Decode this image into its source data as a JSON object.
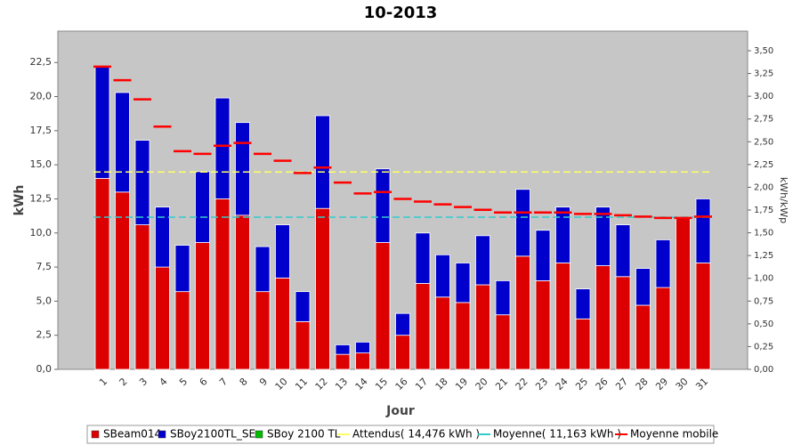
{
  "chart_data": {
    "type": "bar",
    "stacked": true,
    "title": "10-2013",
    "x_label": "Jour",
    "y_label": "kWh",
    "y2_label": "kWh/kWp",
    "categories": [
      "1",
      "2",
      "3",
      "4",
      "5",
      "6",
      "7",
      "8",
      "9",
      "10",
      "11",
      "12",
      "13",
      "14",
      "15",
      "16",
      "17",
      "18",
      "19",
      "20",
      "21",
      "22",
      "23",
      "24",
      "25",
      "26",
      "27",
      "28",
      "29",
      "30",
      "31"
    ],
    "series": [
      {
        "name": "SBeam014",
        "color": "#dd0000",
        "values": [
          14.0,
          13.0,
          10.6,
          7.5,
          5.7,
          9.3,
          12.5,
          11.3,
          5.7,
          6.7,
          3.5,
          11.8,
          1.1,
          1.2,
          9.3,
          2.5,
          6.3,
          5.3,
          4.9,
          6.2,
          4.0,
          8.3,
          6.5,
          7.8,
          3.7,
          7.6,
          6.8,
          4.7,
          6.0,
          11.1,
          7.8
        ]
      },
      {
        "name": "SBoy2100TL_SE",
        "color": "#0000cc",
        "values": [
          8.2,
          7.3,
          6.2,
          4.4,
          3.4,
          5.2,
          7.4,
          6.8,
          3.3,
          3.9,
          2.2,
          6.8,
          0.7,
          0.8,
          5.4,
          1.6,
          3.7,
          3.1,
          2.9,
          3.6,
          2.5,
          4.9,
          3.7,
          4.1,
          2.2,
          4.3,
          3.8,
          2.7,
          3.5,
          0,
          4.7
        ]
      },
      {
        "name": "SBoy 2100 TL",
        "color": "#00bb00",
        "values": [
          0,
          0,
          0,
          0,
          0,
          0,
          0,
          0,
          0,
          0,
          0,
          0,
          0,
          0,
          0,
          0,
          0,
          0,
          0,
          0,
          0,
          0,
          0,
          0,
          0,
          0,
          0,
          0,
          0,
          0,
          0
        ]
      }
    ],
    "lines": [
      {
        "name": "Attendus( 14,476 kWh )",
        "color": "#ffff66",
        "value": 14.476
      },
      {
        "name": "Moyenne( 11,163 kWh )",
        "color": "#33cccc",
        "value": 11.163
      }
    ],
    "moving_average": {
      "name": "Moyenne mobile",
      "color": "#ff0000",
      "values": [
        22.2,
        21.2,
        19.8,
        17.8,
        16.0,
        15.8,
        16.4,
        16.6,
        15.8,
        15.3,
        14.4,
        14.8,
        13.7,
        12.9,
        13.0,
        12.5,
        12.3,
        12.1,
        11.9,
        11.7,
        11.5,
        11.5,
        11.5,
        11.5,
        11.4,
        11.4,
        11.3,
        11.2,
        11.1,
        11.1,
        11.2
      ]
    },
    "ylim": [
      0,
      24.8
    ],
    "yticks": [
      {
        "value": 0,
        "label": "0,0"
      },
      {
        "value": 2.5,
        "label": "2,5"
      },
      {
        "value": 5,
        "label": "5,0"
      },
      {
        "value": 7.5,
        "label": "7,5"
      },
      {
        "value": 10,
        "label": "10,0"
      },
      {
        "value": 12.5,
        "label": "12,5"
      },
      {
        "value": 15,
        "label": "15,0"
      },
      {
        "value": 17.5,
        "label": "17,5"
      },
      {
        "value": 20,
        "label": "20,0"
      },
      {
        "value": 22.5,
        "label": "22,5"
      }
    ],
    "y2lim": [
      0,
      3.715
    ],
    "y2ticks": [
      {
        "value": 0,
        "label": "0,00"
      },
      {
        "value": 0.25,
        "label": "0,25"
      },
      {
        "value": 0.5,
        "label": "0,50"
      },
      {
        "value": 0.75,
        "label": "0,75"
      },
      {
        "value": 1,
        "label": "1,00"
      },
      {
        "value": 1.25,
        "label": "1,25"
      },
      {
        "value": 1.5,
        "label": "1,50"
      },
      {
        "value": 1.75,
        "label": "1,75"
      },
      {
        "value": 2,
        "label": "2,00"
      },
      {
        "value": 2.25,
        "label": "2,25"
      },
      {
        "value": 2.5,
        "label": "2,50"
      },
      {
        "value": 2.75,
        "label": "2,75"
      },
      {
        "value": 3,
        "label": "3,00"
      },
      {
        "value": 3.25,
        "label": "3,25"
      },
      {
        "value": 3.5,
        "label": "3,50"
      }
    ]
  }
}
